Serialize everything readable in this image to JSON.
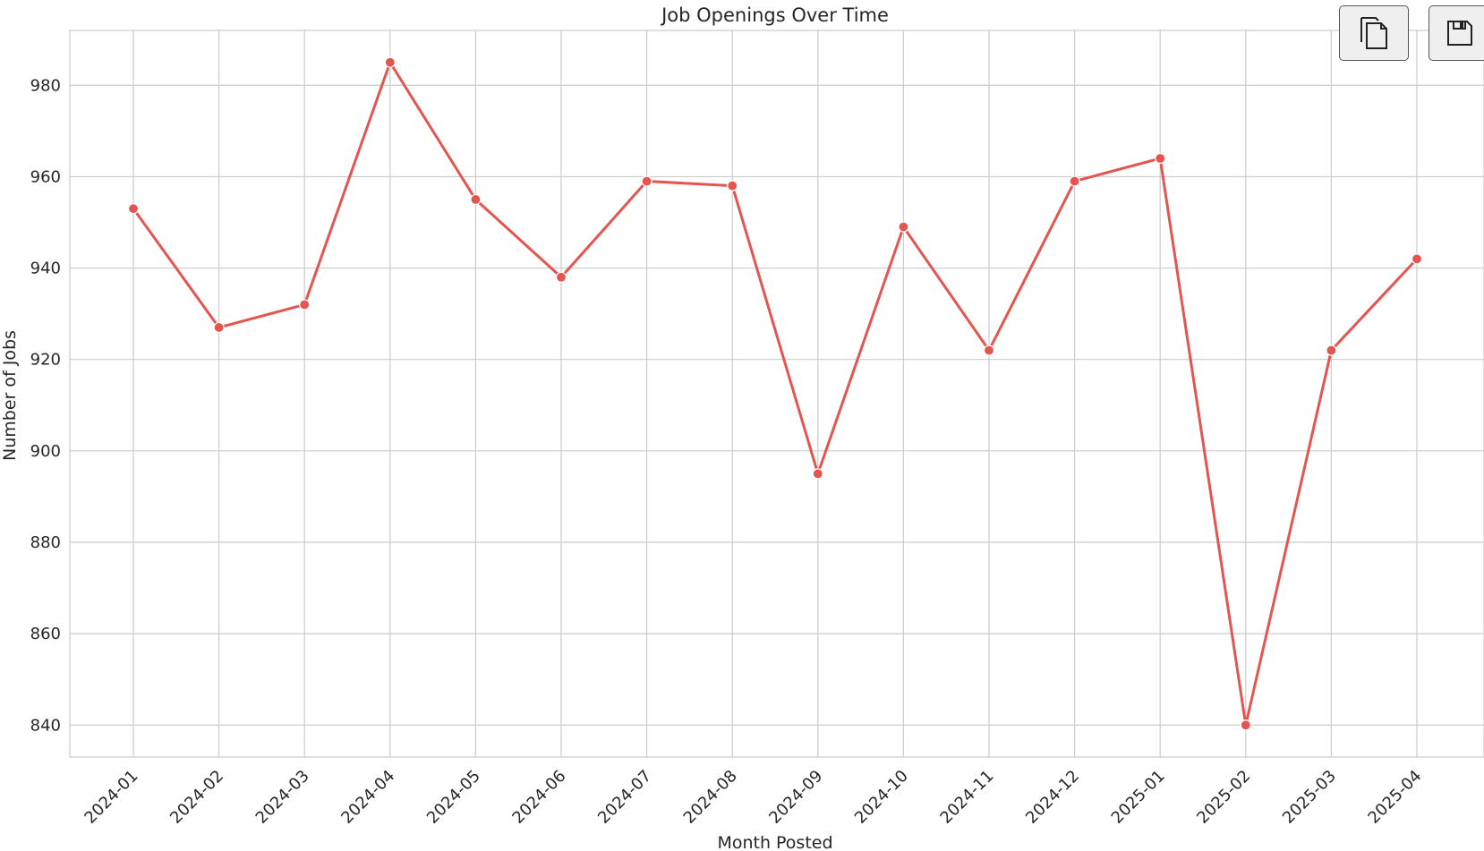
{
  "chart_data": {
    "type": "line",
    "title": "Job Openings Over Time",
    "xlabel": "Month Posted",
    "ylabel": "Number of Jobs",
    "categories": [
      "2024-01",
      "2024-02",
      "2024-03",
      "2024-04",
      "2024-05",
      "2024-06",
      "2024-07",
      "2024-08",
      "2024-09",
      "2024-10",
      "2024-11",
      "2024-12",
      "2025-01",
      "2025-02",
      "2025-03",
      "2025-04"
    ],
    "values": [
      953,
      927,
      932,
      985,
      955,
      938,
      959,
      958,
      895,
      949,
      922,
      959,
      964,
      840,
      922,
      942
    ],
    "ylim": [
      833,
      992
    ],
    "yticks": [
      840,
      860,
      880,
      900,
      920,
      940,
      960,
      980
    ],
    "grid": true,
    "line_color": "#e5554f"
  },
  "toolbar": {
    "copy_icon": "copy-icon",
    "save_icon": "save-icon"
  }
}
